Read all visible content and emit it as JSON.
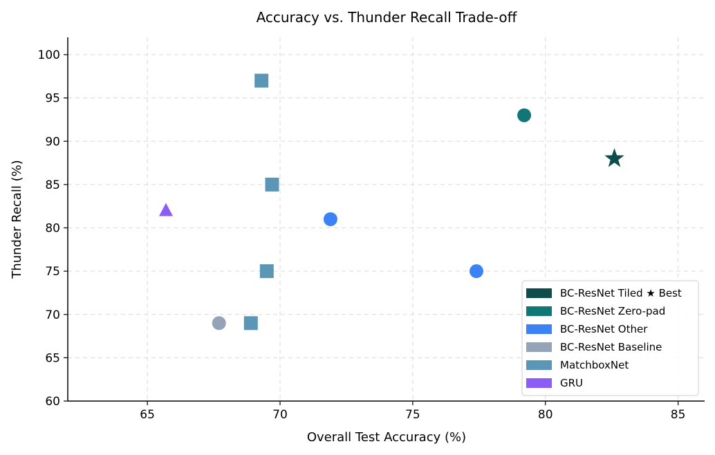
{
  "chart_data": {
    "type": "scatter",
    "title": "Accuracy vs. Thunder Recall Trade-off",
    "xlabel": "Overall Test Accuracy (%)",
    "ylabel": "Thunder Recall (%)",
    "xlim": [
      62,
      86
    ],
    "ylim": [
      60,
      102
    ],
    "xticks": [
      65,
      70,
      75,
      80,
      85
    ],
    "yticks": [
      60,
      65,
      70,
      75,
      80,
      85,
      90,
      95,
      100
    ],
    "grid": true,
    "legend_position": "bottom-right",
    "series": [
      {
        "name": "BC-ResNet Tiled ★ Best",
        "color": "#0f4c4c",
        "marker": "star",
        "points": [
          {
            "x": 82.6,
            "y": 88
          }
        ]
      },
      {
        "name": "BC-ResNet Zero-pad",
        "color": "#0f7775",
        "marker": "circle",
        "points": [
          {
            "x": 79.2,
            "y": 93
          }
        ]
      },
      {
        "name": "BC-ResNet Other",
        "color": "#3b82f6",
        "marker": "circle",
        "points": [
          {
            "x": 71.9,
            "y": 81
          },
          {
            "x": 77.4,
            "y": 75
          }
        ]
      },
      {
        "name": "BC-ResNet Baseline",
        "color": "#94a3b8",
        "marker": "circle",
        "points": [
          {
            "x": 67.7,
            "y": 69
          }
        ]
      },
      {
        "name": "MatchboxNet",
        "color": "#5b96b6",
        "marker": "square",
        "points": [
          {
            "x": 69.3,
            "y": 97
          },
          {
            "x": 69.7,
            "y": 85
          },
          {
            "x": 69.5,
            "y": 75
          },
          {
            "x": 68.9,
            "y": 69
          }
        ]
      },
      {
        "name": "GRU",
        "color": "#8b5cf6",
        "marker": "triangle",
        "points": [
          {
            "x": 65.7,
            "y": 82
          }
        ]
      }
    ]
  }
}
